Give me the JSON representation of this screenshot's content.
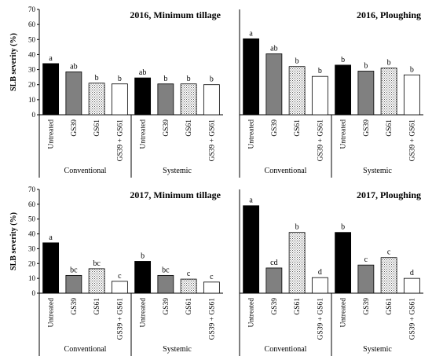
{
  "chart_data": [
    {
      "type": "bar",
      "title": "2016, Minimum tillage",
      "ylabel": "SLB severity (%)",
      "ylim": [
        0,
        70
      ],
      "yticks": [
        0,
        10,
        20,
        30,
        40,
        50,
        60,
        70
      ],
      "categories": [
        "Untreated",
        "GS39",
        "GS61",
        "GS39 + GS61",
        "Untreated",
        "GS39",
        "GS61",
        "GS39 + GS61"
      ],
      "groups": [
        "Conventional",
        "Systemic"
      ],
      "values": [
        34,
        28.5,
        21,
        20.5,
        24.5,
        20.5,
        20.5,
        20
      ],
      "letters": [
        "a",
        "ab",
        "b",
        "b",
        "ab",
        "b",
        "b",
        "b"
      ]
    },
    {
      "type": "bar",
      "title": "2016, Ploughing",
      "ylabel": "",
      "ylim": [
        0,
        70
      ],
      "yticks": [],
      "categories": [
        "Untreated",
        "GS39",
        "GS61",
        "GS39 + GS61",
        "Untreated",
        "GS39",
        "GS61",
        "GS39 + GS61"
      ],
      "groups": [
        "Conventional",
        "Systemic"
      ],
      "values": [
        50.5,
        40.5,
        32,
        25.5,
        33,
        29,
        31,
        26.5
      ],
      "letters": [
        "a",
        "ab",
        "b",
        "b",
        "b",
        "b",
        "b",
        "b"
      ]
    },
    {
      "type": "bar",
      "title": "2017, Minimum tillage",
      "ylabel": "SLB severity (%)",
      "ylim": [
        0,
        70
      ],
      "yticks": [
        0,
        10,
        20,
        30,
        40,
        50,
        60,
        70
      ],
      "categories": [
        "Untreated",
        "GS39",
        "GS61",
        "GS39 + GS61",
        "Untreated",
        "GS39",
        "GS61",
        "GS39 + GS61"
      ],
      "groups": [
        "Conventional",
        "Systemic"
      ],
      "values": [
        34,
        12,
        16.5,
        8,
        21.5,
        12,
        9.5,
        7.5
      ],
      "letters": [
        "a",
        "bc",
        "bc",
        "c",
        "b",
        "bc",
        "c",
        "c"
      ]
    },
    {
      "type": "bar",
      "title": "2017, Ploughing",
      "ylabel": "",
      "ylim": [
        0,
        70
      ],
      "yticks": [],
      "categories": [
        "Untreated",
        "GS39",
        "GS61",
        "GS39 + GS61",
        "Untreated",
        "GS39",
        "GS61",
        "GS39 + GS61"
      ],
      "groups": [
        "Conventional",
        "Systemic"
      ],
      "values": [
        59,
        17,
        41,
        10.5,
        41,
        19,
        24,
        10
      ],
      "letters": [
        "a",
        "cd",
        "b",
        "d",
        "b",
        "c",
        "c",
        "d"
      ]
    }
  ],
  "colors": {
    "Untreated": "#000000",
    "GS39": "#808080",
    "GS61": "#ffffff",
    "GS39 + GS61": "#ffffff"
  }
}
